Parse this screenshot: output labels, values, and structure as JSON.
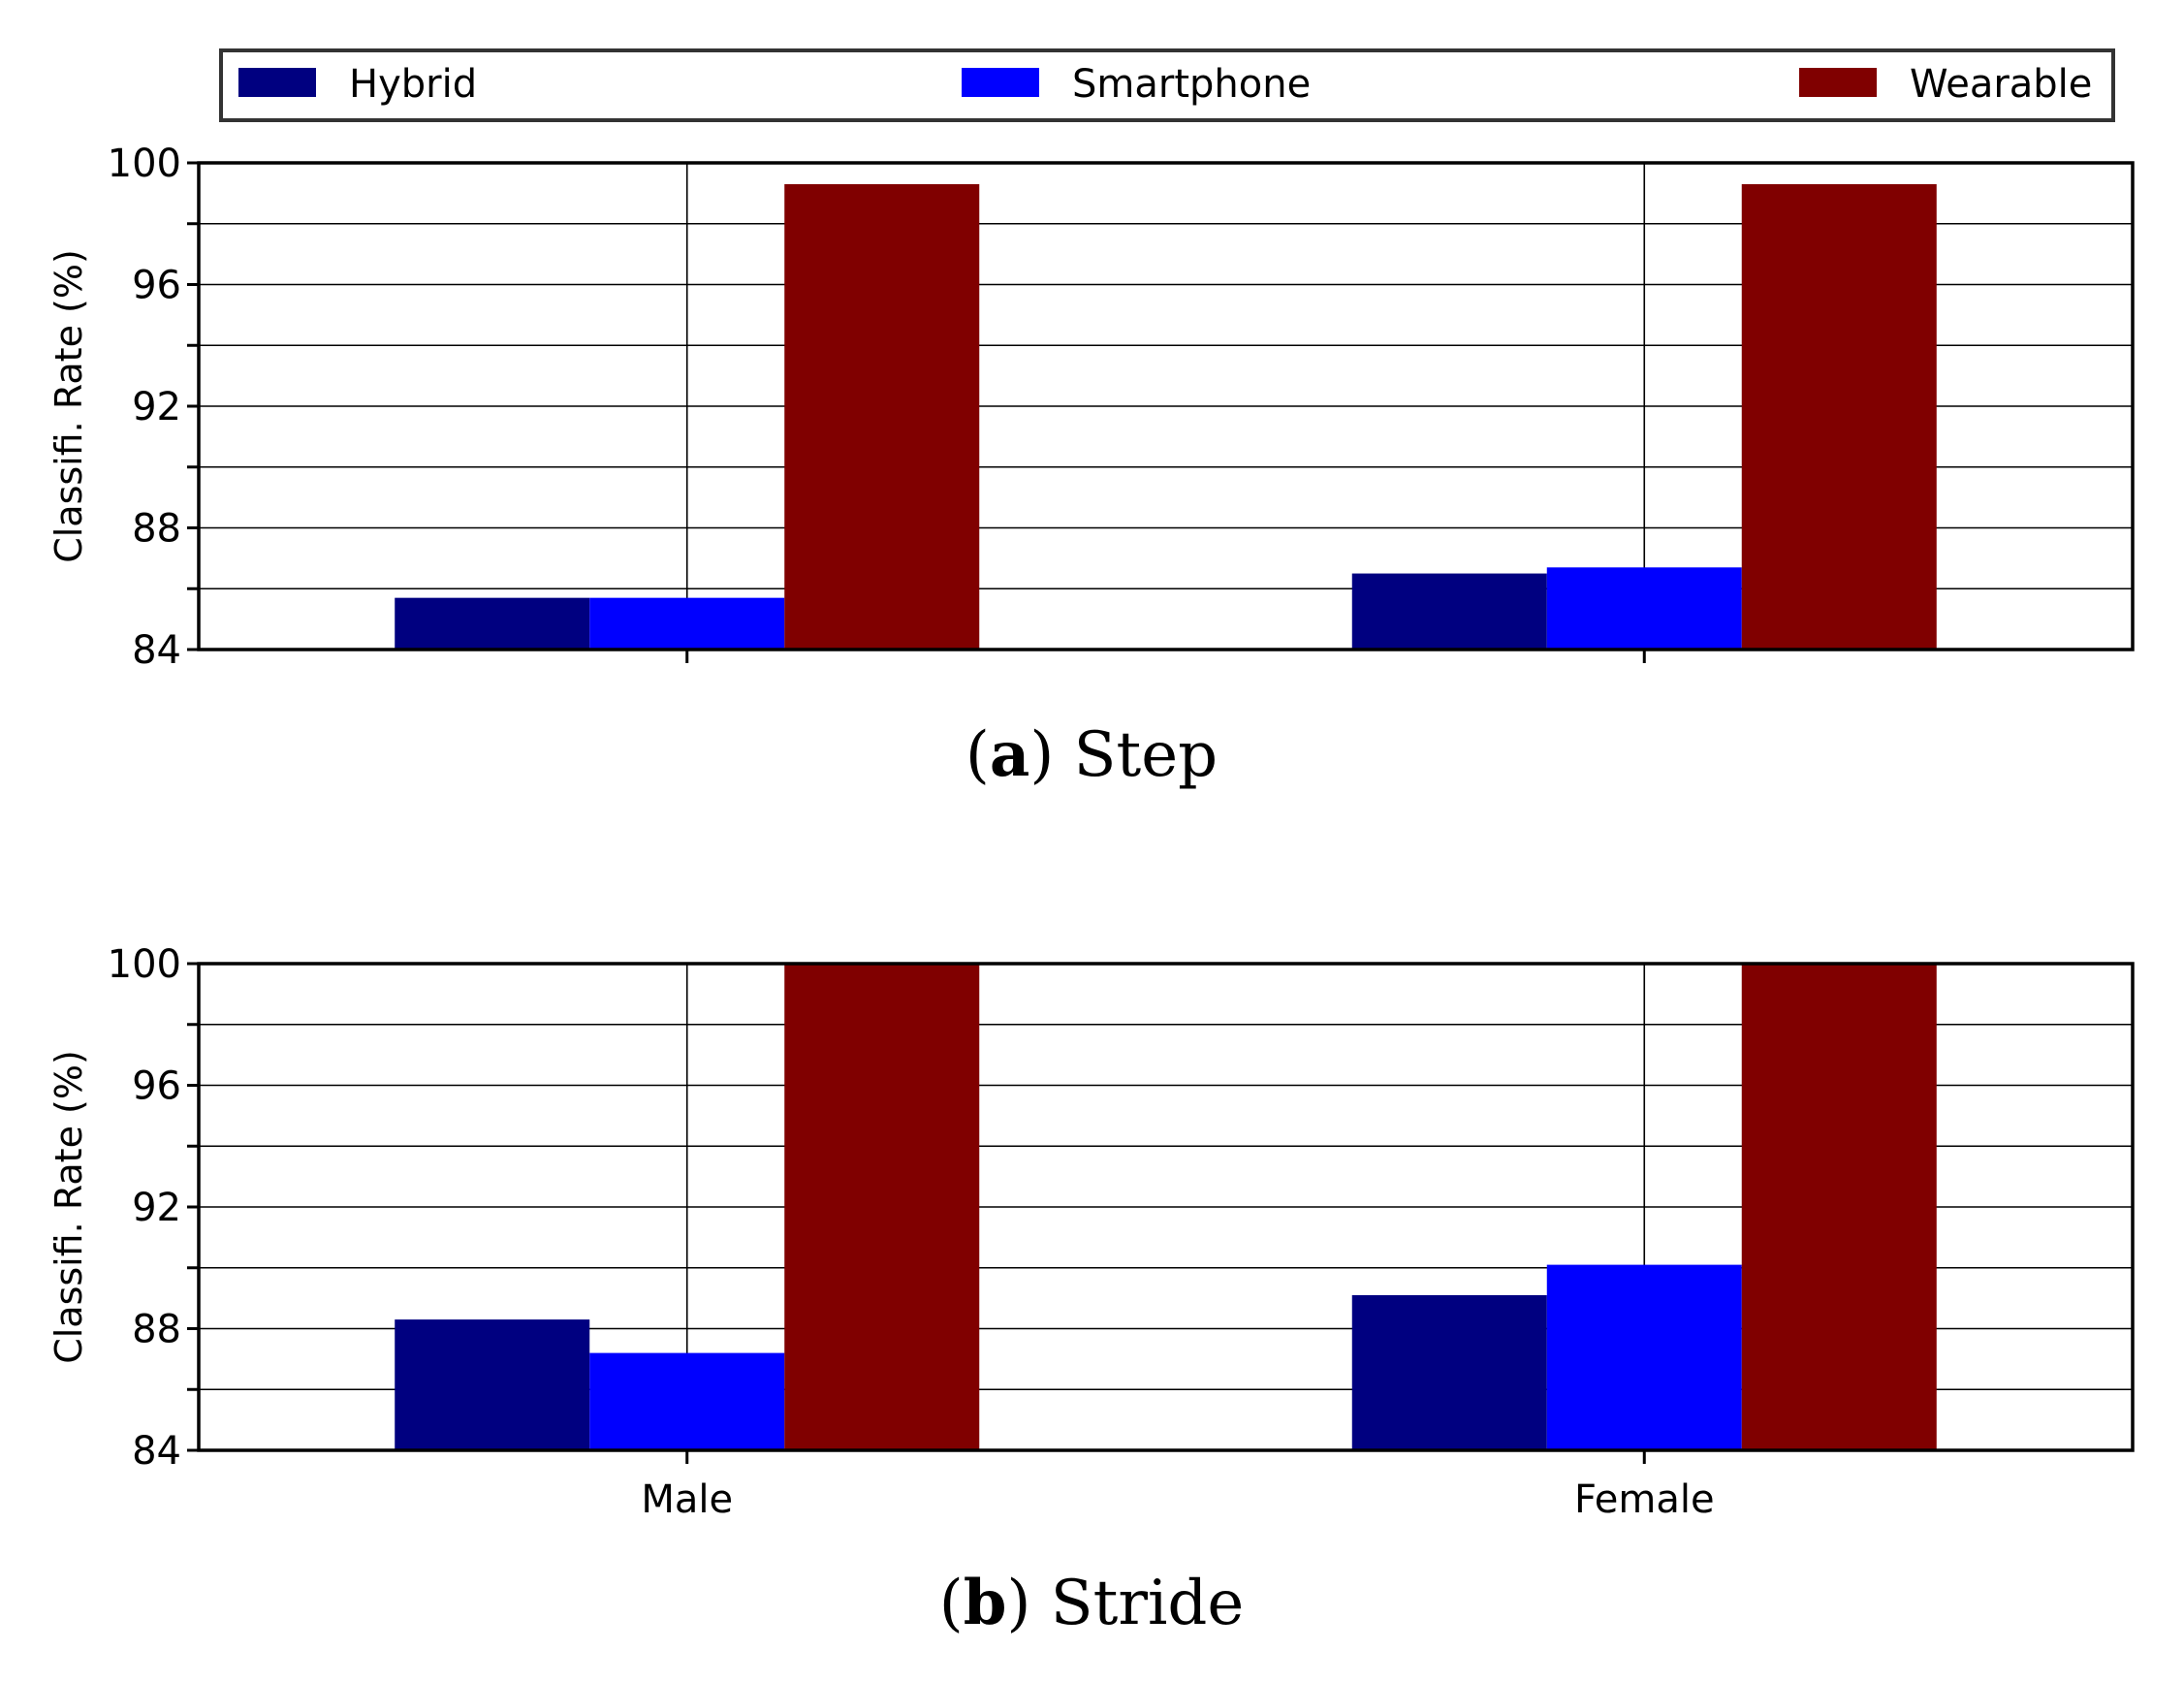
{
  "legend": {
    "placement": "top",
    "entries": [
      {
        "label": "Hybrid",
        "color": "#000080"
      },
      {
        "label": "Smartphone",
        "color": "#0000ff"
      },
      {
        "label": "Wearable",
        "color": "#800000"
      }
    ]
  },
  "chart_data": [
    {
      "type": "bar",
      "panel": "a",
      "caption_letter": "a",
      "caption_text": "Step",
      "categories": [
        "Male",
        "Female"
      ],
      "show_category_labels": false,
      "series": [
        {
          "name": "Hybrid",
          "values": [
            85.7,
            86.5
          ]
        },
        {
          "name": "Smartphone",
          "values": [
            85.7,
            86.7
          ]
        },
        {
          "name": "Wearable",
          "values": [
            99.3,
            99.3
          ]
        }
      ],
      "ylabel": "Classifi. Rate (%)",
      "ylim": [
        84,
        100
      ],
      "yticks": [
        "84",
        "88",
        "92",
        "96",
        "100"
      ],
      "grid": true
    },
    {
      "type": "bar",
      "panel": "b",
      "caption_letter": "b",
      "caption_text": "Stride",
      "categories": [
        "Male",
        "Female"
      ],
      "show_category_labels": true,
      "series": [
        {
          "name": "Hybrid",
          "values": [
            88.3,
            89.1
          ]
        },
        {
          "name": "Smartphone",
          "values": [
            87.2,
            90.1
          ]
        },
        {
          "name": "Wearable",
          "values": [
            100,
            100
          ]
        }
      ],
      "ylabel": "Classifi. Rate (%)",
      "ylim": [
        84,
        100
      ],
      "yticks": [
        "84",
        "88",
        "92",
        "96",
        "100"
      ],
      "grid": true
    }
  ]
}
